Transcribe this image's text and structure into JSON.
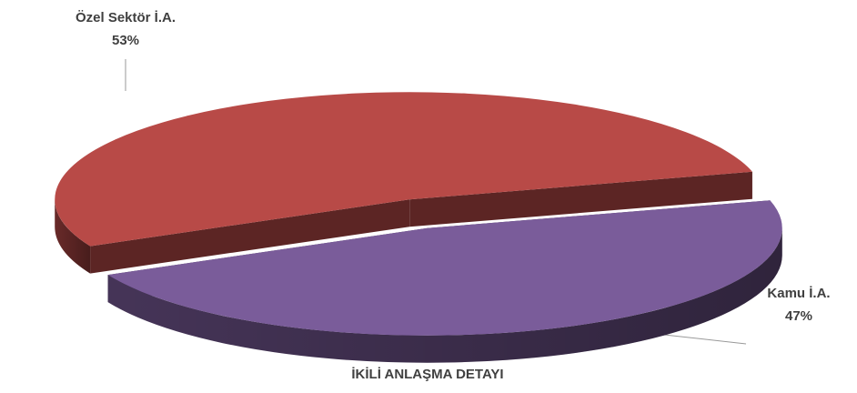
{
  "chart_data": {
    "type": "pie3d",
    "title": "İKİLİ ANLAŞMA DETAYI",
    "categories": [
      "Özel Sektör İ.A.",
      "Kamu İ.A."
    ],
    "values": [
      53,
      47
    ],
    "value_labels": [
      "53%",
      "47%"
    ],
    "colors": [
      "#b84a47",
      "#7a5c9a"
    ]
  }
}
